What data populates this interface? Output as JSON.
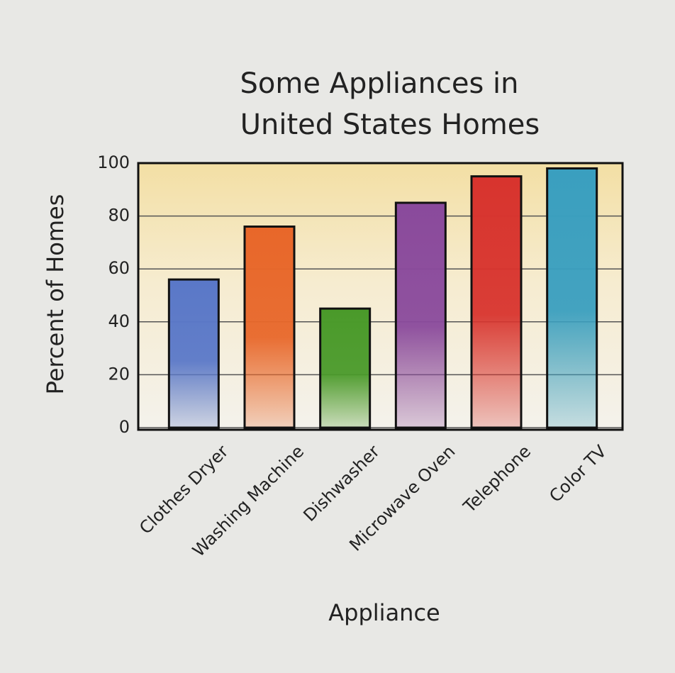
{
  "chart_data": {
    "type": "bar",
    "title": [
      "Some Appliances in",
      "United States Homes"
    ],
    "x_label": "Appliance",
    "y_label": "Percent of Homes",
    "categories": [
      "Clothes Dryer",
      "Washing Machine",
      "Dishwasher",
      "Microwave Oven",
      "Telephone",
      "Color TV"
    ],
    "values": [
      56,
      76,
      45,
      85,
      95,
      98
    ],
    "colors": [
      "#5a78c8",
      "#e8672a",
      "#4a9a2a",
      "#8a4a9c",
      "#d8342e",
      "#3a9fbf"
    ],
    "ylim": [
      0,
      100
    ],
    "yticks": [
      0,
      20,
      40,
      60,
      80,
      100
    ],
    "grid": true
  }
}
